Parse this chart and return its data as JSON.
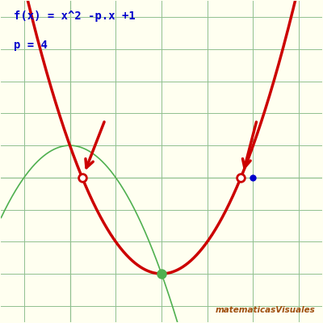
{
  "title_line1": "f(x) = x^2 -p.x +1",
  "title_line2": "p = 4",
  "title_color": "#0000cc",
  "bg_color": "#fffff0",
  "grid_color": "#90c090",
  "red_curve_color": "#cc0000",
  "green_curve_color": "#50b050",
  "blue_dot_color": "#0000cc",
  "p": 4,
  "xlim": [
    -1.5,
    5.5
  ],
  "ylim": [
    -4.5,
    5.5
  ],
  "watermark": "matematicasVisuales",
  "watermark_color": "#a05010"
}
